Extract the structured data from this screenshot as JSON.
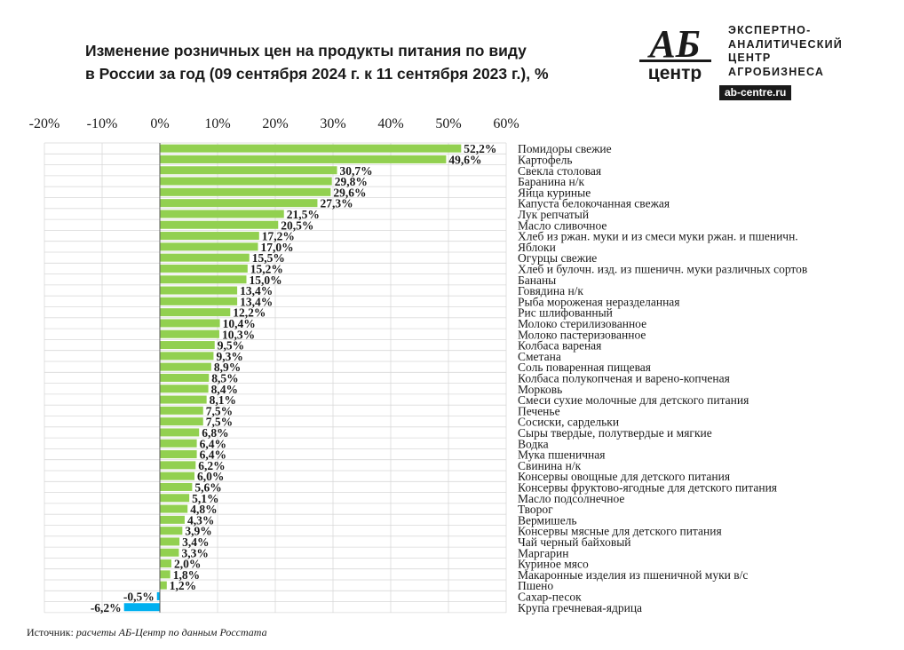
{
  "header": {
    "title_line1": "Изменение розничных цен на продукты питания по виду",
    "title_line2": "в России за год (09 сентября 2024 г. к 11 сентября 2023 г.), %"
  },
  "logo": {
    "mark": "АБ",
    "mark_sub": "центр",
    "line1": "ЭКСПЕРТНО-",
    "line2": "АНАЛИТИЧЕСКИЙ",
    "line3": "ЦЕНТР",
    "line4": "АГРОБИЗНЕСА",
    "url": "ab-centre.ru"
  },
  "source": {
    "label": "Источник:",
    "text": "расчеты АБ-Центр по данным Росстата"
  },
  "colors": {
    "positive": "#92d050",
    "negative": "#00b0f0",
    "grid": "#d9d9d9"
  },
  "chart_data": {
    "type": "bar",
    "orientation": "horizontal",
    "xlim": [
      -20,
      60
    ],
    "x_ticks": [
      "-20%",
      "-10%",
      "0%",
      "10%",
      "20%",
      "30%",
      "40%",
      "50%",
      "60%"
    ],
    "grid": true,
    "categories": [
      "Помидоры свежие",
      "Картофель",
      "Свекла столовая",
      "Баранина н/к",
      "Яйца куриные",
      "Капуста белокочанная свежая",
      "Лук репчатый",
      "Масло сливочное",
      "Хлеб из ржан. муки и из смеси муки ржан. и пшеничн.",
      "Яблоки",
      "Огурцы свежие",
      "Хлеб и булочн. изд. из пшеничн. муки различных сортов",
      "Бананы",
      "Говядина н/к",
      "Рыба мороженая неразделанная",
      "Рис шлифованный",
      "Молоко стерилизованное",
      "Молоко пастеризованное",
      "Колбаса вареная",
      "Сметана",
      "Соль поваренная пищевая",
      "Колбаса полукопченая и варено-копченая",
      "Морковь",
      "Смеси сухие молочные для детского питания",
      "Печенье",
      "Сосиски, сардельки",
      "Сыры твердые, полутвердые и мягкие",
      "Водка",
      "Мука пшеничная",
      "Свинина н/к",
      "Консервы овощные для детского питания",
      "Консервы фруктово-ягодные для детского питания",
      "Масло подсолнечное",
      "Творог",
      "Вермишель",
      "Консервы мясные для детского питания",
      "Чай черный байховый",
      "Маргарин",
      "Куриное мясо",
      "Макаронные изделия из пшеничной муки в/с",
      "Пшено",
      "Сахар-песок",
      "Крупа гречневая-ядрица"
    ],
    "values": [
      52.2,
      49.6,
      30.7,
      29.8,
      29.6,
      27.3,
      21.5,
      20.5,
      17.2,
      17.0,
      15.5,
      15.2,
      15.0,
      13.4,
      13.4,
      12.2,
      10.4,
      10.3,
      9.5,
      9.3,
      8.9,
      8.5,
      8.4,
      8.1,
      7.5,
      7.5,
      6.8,
      6.4,
      6.4,
      6.2,
      6.0,
      5.6,
      5.1,
      4.8,
      4.3,
      3.9,
      3.4,
      3.3,
      2.0,
      1.8,
      1.2,
      -0.5,
      -6.2
    ],
    "value_labels": [
      "52,2%",
      "49,6%",
      "30,7%",
      "29,8%",
      "29,6%",
      "27,3%",
      "21,5%",
      "20,5%",
      "17,2%",
      "17,0%",
      "15,5%",
      "15,2%",
      "15,0%",
      "13,4%",
      "13,4%",
      "12,2%",
      "10,4%",
      "10,3%",
      "9,5%",
      "9,3%",
      "8,9%",
      "8,5%",
      "8,4%",
      "8,1%",
      "7,5%",
      "7,5%",
      "6,8%",
      "6,4%",
      "6,4%",
      "6,2%",
      "6,0%",
      "5,6%",
      "5,1%",
      "4,8%",
      "4,3%",
      "3,9%",
      "3,4%",
      "3,3%",
      "2,0%",
      "1,8%",
      "1,2%",
      "-0,5%",
      "-6,2%"
    ]
  }
}
